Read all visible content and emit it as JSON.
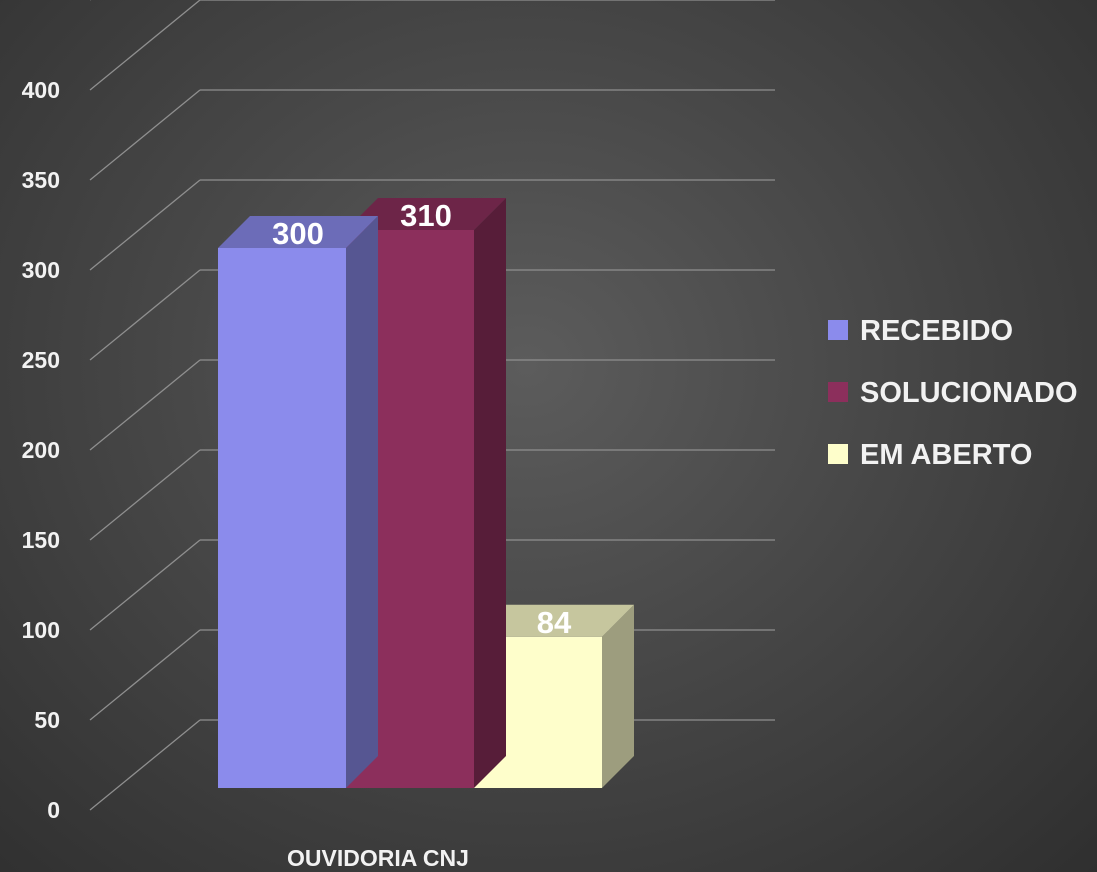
{
  "chart_data": {
    "type": "bar",
    "style": "3d-clustered-column",
    "categories": [
      "OUVIDORIA CNJ"
    ],
    "series": [
      {
        "name": "RECEBIDO",
        "values": [
          300
        ],
        "color": "#8b8bec"
      },
      {
        "name": "SOLUCIONADO",
        "values": [
          310
        ],
        "color": "#8c2f5c"
      },
      {
        "name": "EM ABERTO",
        "values": [
          84
        ],
        "color": "#fefecb"
      }
    ],
    "y_ticks": [
      "0",
      "50",
      "100",
      "150",
      "200",
      "250",
      "300",
      "350",
      "400"
    ],
    "ylim": [
      0,
      450
    ],
    "grid": true,
    "legend_position": "right",
    "background": "#484848"
  }
}
